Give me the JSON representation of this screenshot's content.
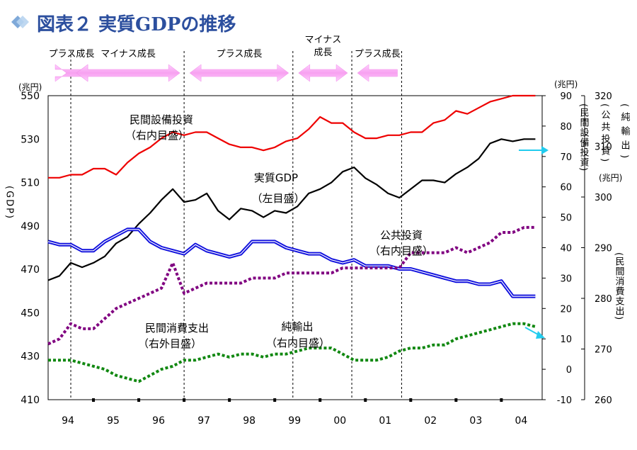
{
  "title": "図表２ 実質GDPの推移",
  "chart_data": {
    "type": "line",
    "title": "図表２ 実質GDPの推移",
    "x_tick_labels": [
      "94",
      "95",
      "96",
      "97",
      "98",
      "99",
      "00",
      "01",
      "02",
      "03",
      "04"
    ],
    "x_range": [
      1994.0,
      2004.9
    ],
    "axes": {
      "left": {
        "label": "(GDP)",
        "unit": "(兆円)",
        "range": [
          410,
          550
        ],
        "ticks": [
          410,
          430,
          450,
          470,
          490,
          510,
          530,
          550
        ]
      },
      "right_inner": {
        "labels": [
          "(民間設備投資)",
          "(公共投資)",
          "(純輸出)"
        ],
        "unit": "(兆円)",
        "range": [
          -10,
          90
        ],
        "ticks": [
          -10,
          0,
          10,
          20,
          30,
          40,
          50,
          60,
          70,
          80,
          90
        ]
      },
      "right_outer": {
        "label": "(民間消費支出)",
        "unit": "(兆円)",
        "range": [
          260,
          320
        ],
        "ticks": [
          260,
          270,
          280,
          290,
          300,
          310,
          320
        ]
      }
    },
    "phases": [
      {
        "label": "プラス成長",
        "direction": "both"
      },
      {
        "label": "マイナス成長",
        "direction": "both"
      },
      {
        "label": "プラス成長",
        "direction": "both"
      },
      {
        "label": "マイナス成長",
        "direction": "both"
      },
      {
        "label": "プラス成長",
        "direction": "left"
      }
    ],
    "phase_boundaries": [
      1994.5,
      1997.0,
      1999.4,
      2000.7,
      2001.8
    ],
    "series": [
      {
        "name": "実質GDP",
        "annotation": [
          "実質GDP",
          "（左目盛）"
        ],
        "axis": "left",
        "color": "#000000",
        "style": "solid",
        "x": [
          1994.0,
          1994.25,
          1994.5,
          1994.75,
          1995.0,
          1995.25,
          1995.5,
          1995.75,
          1996.0,
          1996.25,
          1996.5,
          1996.75,
          1997.0,
          1997.25,
          1997.5,
          1997.75,
          1998.0,
          1998.25,
          1998.5,
          1998.75,
          1999.0,
          1999.25,
          1999.5,
          1999.75,
          2000.0,
          2000.25,
          2000.5,
          2000.75,
          2001.0,
          2001.25,
          2001.5,
          2001.75,
          2002.0,
          2002.25,
          2002.5,
          2002.75,
          2003.0,
          2003.25,
          2003.5,
          2003.75,
          2004.0,
          2004.25,
          2004.5,
          2004.75
        ],
        "values": [
          465,
          467,
          473,
          471,
          473,
          476,
          482,
          485,
          491,
          496,
          502,
          507,
          501,
          502,
          505,
          497,
          493,
          498,
          497,
          494,
          497,
          496,
          499,
          505,
          507,
          510,
          515,
          517,
          512,
          509,
          505,
          503,
          507,
          511,
          511,
          510,
          514,
          517,
          521,
          528,
          530,
          529,
          530,
          530
        ]
      },
      {
        "name": "民間設備投資",
        "annotation": [
          "民間設備投資",
          "（右内目盛）"
        ],
        "axis": "right_inner",
        "color": "#ee0000",
        "style": "solid",
        "x": [
          1994.0,
          1994.25,
          1994.5,
          1994.75,
          1995.0,
          1995.25,
          1995.5,
          1995.75,
          1996.0,
          1996.25,
          1996.5,
          1996.75,
          1997.0,
          1997.25,
          1997.5,
          1997.75,
          1998.0,
          1998.25,
          1998.5,
          1998.75,
          1999.0,
          1999.25,
          1999.5,
          1999.75,
          2000.0,
          2000.25,
          2000.5,
          2000.75,
          2001.0,
          2001.25,
          2001.5,
          2001.75,
          2002.0,
          2002.25,
          2002.5,
          2002.75,
          2003.0,
          2003.25,
          2003.5,
          2003.75,
          2004.0,
          2004.25,
          2004.5,
          2004.75
        ],
        "values": [
          63,
          63,
          64,
          64,
          66,
          66,
          64,
          68,
          71,
          73,
          76,
          78,
          77,
          78,
          78,
          76,
          74,
          73,
          73,
          72,
          73,
          75,
          76,
          79,
          83,
          81,
          81,
          78,
          76,
          76,
          77,
          77,
          78,
          78,
          81,
          82,
          85,
          84,
          86,
          88,
          89,
          90,
          90,
          90
        ]
      },
      {
        "name": "公共投資",
        "annotation": [
          "公共投資",
          "（右内目盛）"
        ],
        "axis": "right_inner",
        "color": "#1010dd",
        "style": "double",
        "x": [
          1994.0,
          1994.25,
          1994.5,
          1994.75,
          1995.0,
          1995.25,
          1995.5,
          1995.75,
          1996.0,
          1996.25,
          1996.5,
          1996.75,
          1997.0,
          1997.25,
          1997.5,
          1997.75,
          1998.0,
          1998.25,
          1998.5,
          1998.75,
          1999.0,
          1999.25,
          1999.5,
          1999.75,
          2000.0,
          2000.25,
          2000.5,
          2000.75,
          2001.0,
          2001.25,
          2001.5,
          2001.75,
          2002.0,
          2002.25,
          2002.5,
          2002.75,
          2003.0,
          2003.25,
          2003.5,
          2003.75,
          2004.0,
          2004.25,
          2004.5,
          2004.75
        ],
        "values": [
          42,
          41,
          41,
          39,
          39,
          42,
          44,
          46,
          46,
          42,
          40,
          39,
          38,
          41,
          39,
          38,
          37,
          38,
          42,
          42,
          42,
          40,
          39,
          38,
          38,
          36,
          35,
          36,
          34,
          34,
          34,
          33,
          33,
          32,
          31,
          30,
          29,
          29,
          28,
          28,
          29,
          24,
          24,
          24
        ]
      },
      {
        "name": "純輸出",
        "annotation": [
          "純輸出",
          "（右内目盛）"
        ],
        "axis": "right_inner",
        "color": "#118811",
        "style": "dotted",
        "x": [
          1994.0,
          1994.25,
          1994.5,
          1994.75,
          1995.0,
          1995.25,
          1995.5,
          1995.75,
          1996.0,
          1996.25,
          1996.5,
          1996.75,
          1997.0,
          1997.25,
          1997.5,
          1997.75,
          1998.0,
          1998.25,
          1998.5,
          1998.75,
          1999.0,
          1999.25,
          1999.5,
          1999.75,
          2000.0,
          2000.25,
          2000.5,
          2000.75,
          2001.0,
          2001.25,
          2001.5,
          2001.75,
          2002.0,
          2002.25,
          2002.5,
          2002.75,
          2003.0,
          2003.25,
          2003.5,
          2003.75,
          2004.0,
          2004.25,
          2004.5,
          2004.75
        ],
        "values": [
          3,
          3,
          3,
          2,
          1,
          0,
          -2,
          -3,
          -4,
          -2,
          0,
          1,
          3,
          3,
          4,
          5,
          4,
          5,
          5,
          4,
          5,
          5,
          6,
          7,
          7,
          7,
          5,
          3,
          3,
          3,
          4,
          6,
          7,
          7,
          8,
          8,
          10,
          11,
          12,
          13,
          14,
          15,
          15,
          14
        ]
      },
      {
        "name": "民間消費支出",
        "annotation": [
          "民間消費支出",
          "（右外目盛）"
        ],
        "axis": "right_outer",
        "color": "#800080",
        "style": "dotted",
        "x": [
          1994.0,
          1994.25,
          1994.5,
          1994.75,
          1995.0,
          1995.25,
          1995.5,
          1995.75,
          1996.0,
          1996.25,
          1996.5,
          1996.75,
          1997.0,
          1997.25,
          1997.5,
          1997.75,
          1998.0,
          1998.25,
          1998.5,
          1998.75,
          1999.0,
          1999.25,
          1999.5,
          1999.75,
          2000.0,
          2000.25,
          2000.5,
          2000.75,
          2001.0,
          2001.25,
          2001.5,
          2001.75,
          2002.0,
          2002.25,
          2002.5,
          2002.75,
          2003.0,
          2003.25,
          2003.5,
          2003.75,
          2004.0,
          2004.25,
          2004.5,
          2004.75
        ],
        "values": [
          271,
          272,
          275,
          274,
          274,
          276,
          278,
          279,
          280,
          281,
          282,
          287,
          281,
          282,
          283,
          283,
          283,
          283,
          284,
          284,
          284,
          285,
          285,
          285,
          285,
          285,
          286,
          286,
          286,
          286,
          286,
          286,
          289,
          289,
          289,
          289,
          290,
          289,
          290,
          291,
          293,
          293,
          294,
          294
        ]
      }
    ]
  }
}
